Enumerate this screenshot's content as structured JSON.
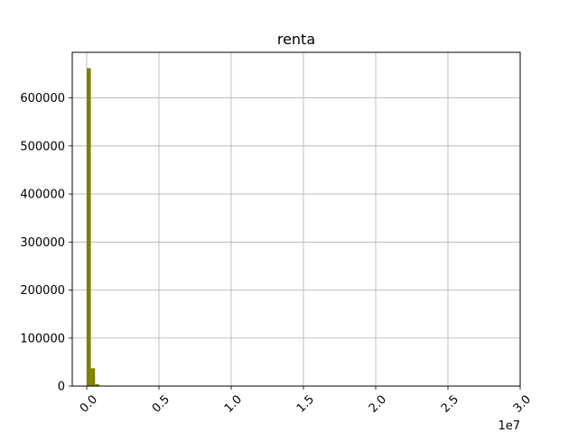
{
  "chart_data": {
    "type": "bar",
    "title": "renta",
    "xlabel": "",
    "ylabel": "",
    "x_offset_label": "1e7",
    "xlim": [
      -0.1,
      3.0
    ],
    "ylim": [
      0,
      695000
    ],
    "x_tick_values": [
      0.0,
      0.5,
      1.0,
      1.5,
      2.0,
      2.5,
      3.0
    ],
    "x_tick_labels": [
      "0.0",
      "0.5",
      "1.0",
      "1.5",
      "2.0",
      "2.5",
      "3.0"
    ],
    "y_tick_values": [
      0,
      100000,
      200000,
      300000,
      400000,
      500000,
      600000
    ],
    "y_tick_labels": [
      "0",
      "100000",
      "200000",
      "300000",
      "400000",
      "500000",
      "600000"
    ],
    "x_tick_rotation_deg": 45,
    "grid": true,
    "bar_color": "#808000",
    "bins": [
      {
        "x0": 0.0,
        "x1": 0.0289,
        "value": 662000
      },
      {
        "x0": 0.0289,
        "x1": 0.0578,
        "value": 37000
      },
      {
        "x0": 0.0578,
        "x1": 0.0867,
        "value": 4000
      },
      {
        "x0": 0.0867,
        "x1": 0.1156,
        "value": 800
      },
      {
        "x0": 0.1156,
        "x1": 0.1445,
        "value": 200
      }
    ]
  }
}
